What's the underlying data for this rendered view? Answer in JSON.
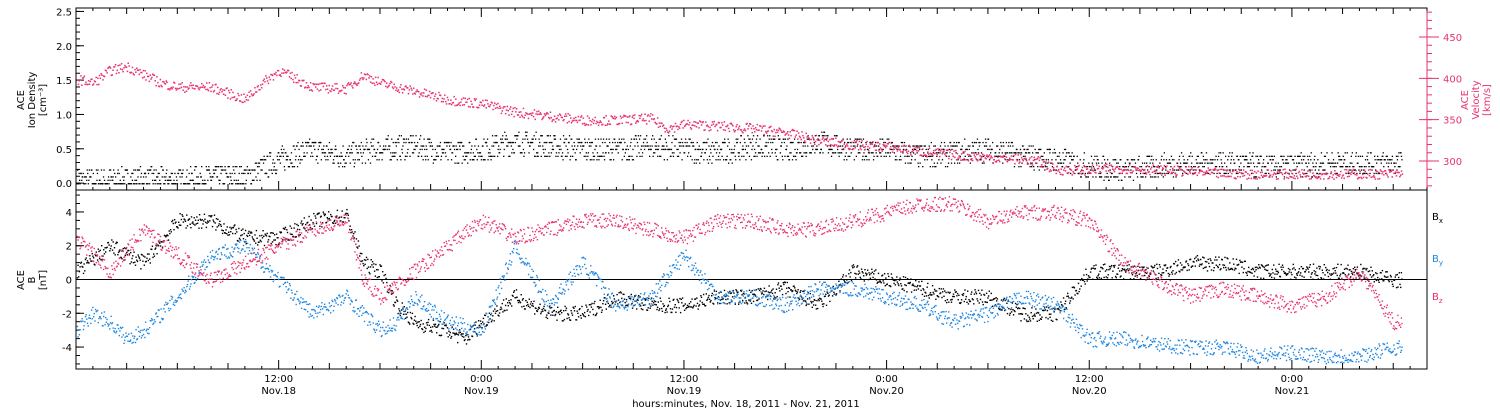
{
  "chart_data": [
    {
      "type": "scatter",
      "panel": "ion-density-velocity",
      "ylabel_left": [
        "ACE",
        "Ion Density",
        "[cm⁻³]"
      ],
      "ylabel_right": [
        "ACE",
        "Velocity",
        "[km/s]"
      ],
      "ylim_left": [
        -0.1,
        2.55
      ],
      "ylim_right": [
        265,
        485
      ],
      "yticks_left": [
        "0.0",
        "0.5",
        "1.0",
        "1.5",
        "2.0",
        "2.5"
      ],
      "yticks_left_values": [
        0,
        0.5,
        1.0,
        1.5,
        2.0,
        2.5
      ],
      "yticks_right": [
        "300",
        "350",
        "400",
        "450"
      ],
      "yticks_right_values": [
        300,
        350,
        400,
        450
      ],
      "xlim_hours": [
        0,
        80
      ],
      "colors": {
        "density": "#000000",
        "velocity": "#e8336b"
      },
      "series": [
        {
          "axis": "left",
          "x_hours": [
            0,
            2,
            4,
            6,
            8,
            10,
            12,
            14,
            16,
            18,
            20,
            22,
            24,
            26,
            28,
            30,
            32,
            34,
            36,
            38,
            40,
            42,
            44,
            46,
            48,
            50,
            52,
            54,
            56,
            58,
            60,
            62,
            64,
            66,
            68,
            70,
            72,
            74,
            76,
            78
          ],
          "values": [
            0.05,
            0.05,
            0.08,
            0.05,
            0.1,
            0.1,
            0.35,
            0.5,
            0.4,
            0.5,
            0.55,
            0.45,
            0.5,
            0.6,
            0.55,
            0.5,
            0.5,
            0.55,
            0.5,
            0.45,
            0.55,
            0.5,
            0.6,
            0.5,
            0.5,
            0.4,
            0.45,
            0.5,
            0.4,
            0.35,
            0.25,
            0.2,
            0.25,
            0.3,
            0.3,
            0.25,
            0.25,
            0.3,
            0.3,
            0.3
          ]
        },
        {
          "axis": "right",
          "x_hours": [
            0,
            1,
            2,
            3,
            4,
            5,
            6,
            8,
            10,
            11,
            12,
            13,
            14,
            16,
            17,
            18,
            20,
            22,
            24,
            26,
            28,
            30,
            32,
            34,
            35,
            36,
            38,
            40,
            42,
            44,
            46,
            48,
            50,
            52,
            54,
            56,
            57,
            58,
            60,
            62,
            64,
            66,
            68,
            70,
            72,
            74,
            76,
            78
          ],
          "values": [
            400,
            395,
            410,
            415,
            405,
            395,
            390,
            390,
            375,
            395,
            410,
            400,
            390,
            388,
            405,
            395,
            385,
            375,
            370,
            360,
            355,
            350,
            350,
            352,
            340,
            345,
            343,
            340,
            335,
            325,
            320,
            318,
            312,
            308,
            305,
            303,
            300,
            290,
            290,
            292,
            290,
            288,
            285,
            285,
            285,
            285,
            285,
            285
          ]
        }
      ]
    },
    {
      "type": "scatter",
      "panel": "magnetic-field",
      "ylabel": [
        "ACE",
        "B",
        "[nT]"
      ],
      "ylim": [
        -5.3,
        5.3
      ],
      "yticks": [
        "-4",
        "-2",
        "0",
        "2",
        "4"
      ],
      "yticks_values": [
        -4,
        -2,
        0,
        2,
        4
      ],
      "xlim_hours": [
        0,
        80
      ],
      "zero_line": true,
      "legend_position": "right",
      "series": [
        {
          "name": "B",
          "subscript": "x",
          "color": "#000000",
          "x_hours": [
            0,
            2,
            4,
            6,
            8,
            10,
            12,
            14,
            16,
            17,
            18,
            19,
            20,
            22,
            23,
            24,
            26,
            28,
            30,
            32,
            34,
            36,
            38,
            40,
            42,
            44,
            46,
            48,
            50,
            52,
            54,
            56,
            58,
            60,
            62,
            64,
            66,
            68,
            70,
            72,
            74,
            76,
            78
          ],
          "values": [
            0.5,
            2.0,
            1.0,
            3.5,
            3.5,
            2.5,
            2.5,
            3.5,
            3.8,
            1.0,
            0.5,
            -1.5,
            -2.5,
            -3.0,
            -3.5,
            -2.5,
            -1.0,
            -2.0,
            -2.0,
            -1.0,
            -1.5,
            -1.5,
            -1.0,
            -1.0,
            -0.5,
            -1.5,
            0.5,
            0.0,
            -0.5,
            -1.0,
            -1.0,
            -2.0,
            -2.0,
            0.5,
            0.5,
            0.5,
            1.0,
            1.0,
            0.5,
            0.5,
            0.5,
            0.5,
            0.0
          ]
        },
        {
          "name": "B",
          "subscript": "y",
          "color": "#1f86e0",
          "x_hours": [
            0,
            1,
            2,
            3,
            4,
            6,
            8,
            10,
            12,
            14,
            16,
            18,
            19,
            20,
            22,
            24,
            26,
            28,
            30,
            32,
            34,
            36,
            38,
            40,
            42,
            44,
            46,
            48,
            50,
            52,
            54,
            56,
            58,
            60,
            62,
            64,
            66,
            68,
            70,
            72,
            74,
            76,
            78
          ],
          "values": [
            -3.0,
            -2.0,
            -2.5,
            -3.5,
            -3.0,
            -1.0,
            1.5,
            2.0,
            0.0,
            -2.0,
            -1.0,
            -3.0,
            -2.5,
            -1.0,
            -2.5,
            -3.0,
            2.0,
            -1.5,
            1.0,
            -1.5,
            -1.0,
            1.5,
            -1.0,
            -1.0,
            -1.5,
            -0.5,
            -0.5,
            -1.0,
            -1.5,
            -2.5,
            -2.0,
            -1.0,
            -1.5,
            -3.5,
            -3.5,
            -3.8,
            -4.0,
            -4.0,
            -4.5,
            -4.3,
            -4.5,
            -4.5,
            -4.0
          ]
        },
        {
          "name": "B",
          "subscript": "z",
          "color": "#e8336b",
          "x_hours": [
            0,
            2,
            4,
            6,
            8,
            10,
            12,
            14,
            16,
            17,
            18,
            20,
            22,
            24,
            26,
            28,
            30,
            32,
            34,
            36,
            38,
            40,
            42,
            44,
            46,
            48,
            50,
            52,
            54,
            56,
            58,
            60,
            62,
            64,
            66,
            68,
            70,
            72,
            74,
            76,
            78
          ],
          "values": [
            2.5,
            0.5,
            3.0,
            1.5,
            0.0,
            1.0,
            2.0,
            3.0,
            3.5,
            0.0,
            -1.0,
            0.5,
            2.0,
            3.5,
            2.5,
            3.0,
            3.5,
            3.5,
            3.0,
            2.5,
            3.5,
            3.5,
            3.0,
            3.0,
            3.5,
            4.0,
            4.5,
            4.5,
            3.5,
            4.0,
            4.0,
            3.5,
            1.0,
            0.0,
            -1.0,
            -0.5,
            -1.0,
            -1.5,
            -1.0,
            0.5,
            -2.5
          ]
        }
      ]
    }
  ],
  "x_axis": {
    "xlabel": "hours:minutes, Nov. 18, 2011 - Nov. 21, 2011",
    "ticks": [
      {
        "hours": 12,
        "time": "12:00",
        "date": "Nov.18"
      },
      {
        "hours": 24,
        "time": "0:00",
        "date": "Nov.19"
      },
      {
        "hours": 36,
        "time": "12:00",
        "date": "Nov.19"
      },
      {
        "hours": 48,
        "time": "0:00",
        "date": "Nov.20"
      },
      {
        "hours": 60,
        "time": "12:00",
        "date": "Nov.20"
      },
      {
        "hours": 72,
        "time": "0:00",
        "date": "Nov.21"
      }
    ]
  }
}
